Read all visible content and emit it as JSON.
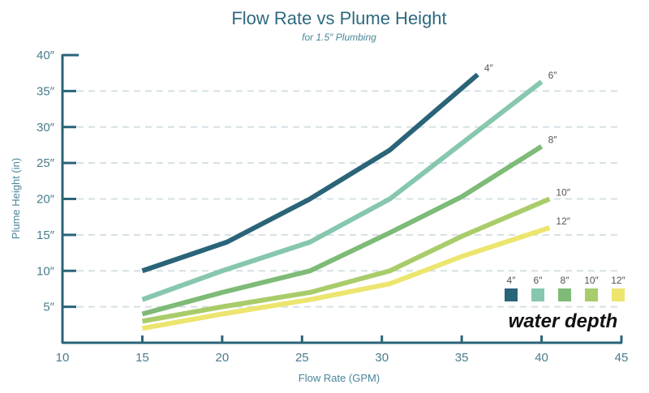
{
  "chart_data": {
    "type": "line",
    "title": "Flow Rate vs Plume Height",
    "subtitle": "for 1.5″ Plumbing",
    "xlabel": "Flow Rate (GPM)",
    "ylabel": "Plume Height (in)",
    "xlim": [
      10,
      45
    ],
    "ylim": [
      0,
      40
    ],
    "xticks": [
      "10",
      "15",
      "20",
      "25",
      "30",
      "35",
      "40",
      "45"
    ],
    "xtick_values": [
      10,
      15,
      20,
      25,
      30,
      35,
      40,
      45
    ],
    "yticks": [
      "5″",
      "10″",
      "15″",
      "20″",
      "25″",
      "30″",
      "35″",
      "40″"
    ],
    "ytick_values": [
      5,
      10,
      15,
      20,
      25,
      30,
      35,
      40
    ],
    "grid": "horizontal dashed",
    "legend_title": "water depth",
    "legend_placement": "bottom-right",
    "series": [
      {
        "name": "4″",
        "color": "#2a6478",
        "points": [
          [
            15,
            10
          ],
          [
            20.3,
            14
          ],
          [
            25.5,
            20
          ],
          [
            30.5,
            26.8
          ],
          [
            36,
            37.3
          ]
        ]
      },
      {
        "name": "6″",
        "color": "#86c7ad",
        "points": [
          [
            15,
            6
          ],
          [
            20,
            10
          ],
          [
            25.5,
            14
          ],
          [
            30.5,
            20
          ],
          [
            40,
            36.3
          ]
        ]
      },
      {
        "name": "8″",
        "color": "#7dbb77",
        "points": [
          [
            15,
            4
          ],
          [
            20,
            7
          ],
          [
            25.5,
            10
          ],
          [
            30.5,
            15.3
          ],
          [
            35,
            20.3
          ],
          [
            40,
            27.3
          ]
        ]
      },
      {
        "name": "10″",
        "color": "#a9cc6a",
        "points": [
          [
            15,
            3
          ],
          [
            20,
            5
          ],
          [
            25.5,
            7
          ],
          [
            30.5,
            10
          ],
          [
            35,
            14.8
          ],
          [
            40.5,
            20
          ]
        ]
      },
      {
        "name": "12″",
        "color": "#ece56e",
        "points": [
          [
            15,
            2
          ],
          [
            20,
            4
          ],
          [
            25.5,
            6
          ],
          [
            30.5,
            8.2
          ],
          [
            35,
            12
          ],
          [
            40.5,
            16
          ]
        ]
      }
    ]
  }
}
